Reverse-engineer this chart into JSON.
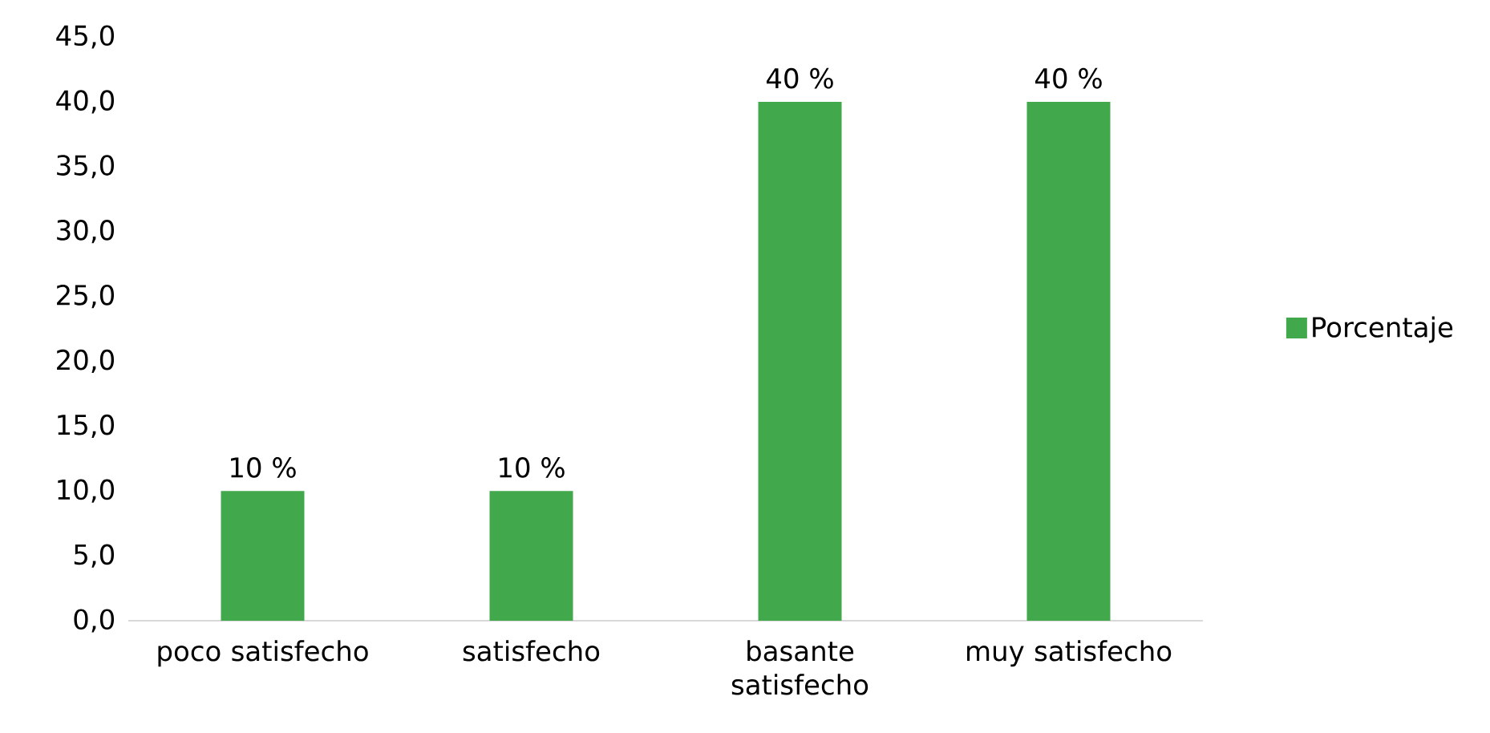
{
  "chart_data": {
    "type": "bar",
    "categories": [
      "poco satisfecho",
      "satisfecho",
      "basante satisfecho",
      "muy satisfecho"
    ],
    "series": [
      {
        "name": "Porcentaje",
        "color": "#41a94b",
        "values": [
          10,
          10,
          40,
          40
        ],
        "value_labels": [
          "10 %",
          "10 %",
          "40 %",
          "40 %"
        ]
      }
    ],
    "ylim": [
      0,
      45
    ],
    "yticks": [
      {
        "value": 0,
        "label": "0,0"
      },
      {
        "value": 5,
        "label": "5,0"
      },
      {
        "value": 10,
        "label": "10,0"
      },
      {
        "value": 15,
        "label": "15,0"
      },
      {
        "value": 20,
        "label": "20,0"
      },
      {
        "value": 25,
        "label": "25,0"
      },
      {
        "value": 30,
        "label": "30,0"
      },
      {
        "value": 35,
        "label": "35,0"
      },
      {
        "value": 40,
        "label": "40,0"
      },
      {
        "value": 45,
        "label": "45,0"
      }
    ],
    "legend": "right"
  }
}
